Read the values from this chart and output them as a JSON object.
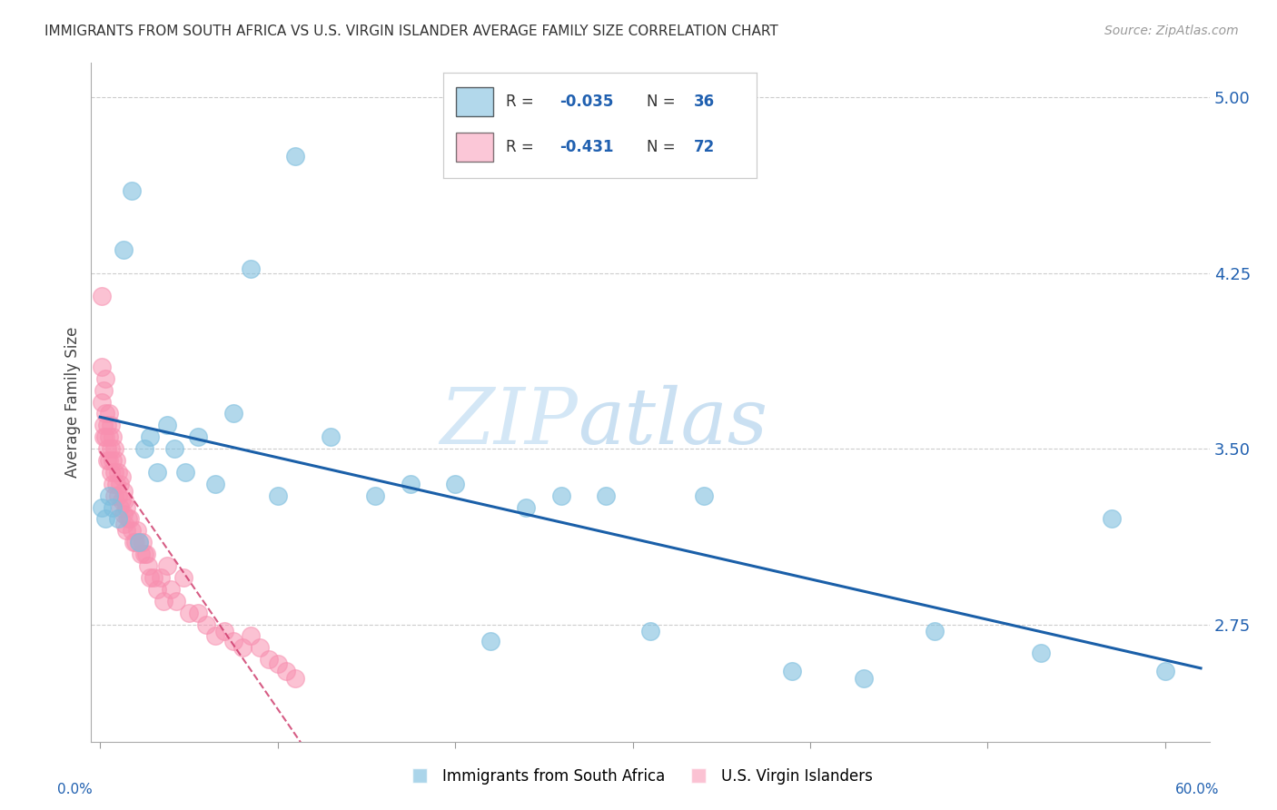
{
  "title": "IMMIGRANTS FROM SOUTH AFRICA VS U.S. VIRGIN ISLANDER AVERAGE FAMILY SIZE CORRELATION CHART",
  "source": "Source: ZipAtlas.com",
  "ylabel": "Average Family Size",
  "ylim": [
    2.25,
    5.15
  ],
  "xlim": [
    -0.005,
    0.625
  ],
  "yticks": [
    2.75,
    3.5,
    4.25,
    5.0
  ],
  "xticks": [
    0.0,
    0.1,
    0.2,
    0.3,
    0.4,
    0.5,
    0.6
  ],
  "background_color": "#ffffff",
  "blue_color": "#7fbfdf",
  "pink_color": "#f890b0",
  "trendline_blue_color": "#1a5fa8",
  "trendline_pink_color": "#cc3366",
  "watermark_zip": "ZIP",
  "watermark_atlas": "atlas",
  "blue_x": [
    0.001,
    0.003,
    0.005,
    0.007,
    0.01,
    0.013,
    0.018,
    0.022,
    0.025,
    0.028,
    0.032,
    0.038,
    0.042,
    0.048,
    0.055,
    0.065,
    0.075,
    0.085,
    0.1,
    0.11,
    0.13,
    0.155,
    0.175,
    0.2,
    0.22,
    0.24,
    0.26,
    0.285,
    0.31,
    0.34,
    0.39,
    0.43,
    0.47,
    0.53,
    0.57,
    0.6
  ],
  "blue_y": [
    3.25,
    3.2,
    3.3,
    3.25,
    3.2,
    4.35,
    4.6,
    3.1,
    3.5,
    3.55,
    3.4,
    3.6,
    3.5,
    3.4,
    3.55,
    3.35,
    3.65,
    4.27,
    3.3,
    4.75,
    3.55,
    3.3,
    3.35,
    3.35,
    2.68,
    3.25,
    3.3,
    3.3,
    2.72,
    3.3,
    2.55,
    2.52,
    2.72,
    2.63,
    3.2,
    2.55
  ],
  "pink_x": [
    0.001,
    0.001,
    0.001,
    0.002,
    0.002,
    0.002,
    0.003,
    0.003,
    0.003,
    0.004,
    0.004,
    0.004,
    0.005,
    0.005,
    0.005,
    0.006,
    0.006,
    0.006,
    0.007,
    0.007,
    0.007,
    0.008,
    0.008,
    0.008,
    0.009,
    0.009,
    0.01,
    0.01,
    0.011,
    0.011,
    0.012,
    0.012,
    0.013,
    0.013,
    0.014,
    0.014,
    0.015,
    0.015,
    0.016,
    0.017,
    0.018,
    0.019,
    0.02,
    0.021,
    0.022,
    0.023,
    0.024,
    0.025,
    0.026,
    0.027,
    0.028,
    0.03,
    0.032,
    0.034,
    0.036,
    0.038,
    0.04,
    0.043,
    0.047,
    0.05,
    0.055,
    0.06,
    0.065,
    0.07,
    0.075,
    0.08,
    0.085,
    0.09,
    0.095,
    0.1,
    0.105,
    0.11
  ],
  "pink_y": [
    4.15,
    3.85,
    3.7,
    3.75,
    3.6,
    3.55,
    3.8,
    3.65,
    3.55,
    3.6,
    3.5,
    3.45,
    3.65,
    3.55,
    3.45,
    3.6,
    3.5,
    3.4,
    3.55,
    3.45,
    3.35,
    3.5,
    3.4,
    3.3,
    3.45,
    3.35,
    3.4,
    3.3,
    3.35,
    3.25,
    3.38,
    3.28,
    3.32,
    3.22,
    3.28,
    3.18,
    3.25,
    3.15,
    3.2,
    3.2,
    3.15,
    3.1,
    3.1,
    3.15,
    3.1,
    3.05,
    3.1,
    3.05,
    3.05,
    3.0,
    2.95,
    2.95,
    2.9,
    2.95,
    2.85,
    3.0,
    2.9,
    2.85,
    2.95,
    2.8,
    2.8,
    2.75,
    2.7,
    2.72,
    2.68,
    2.65,
    2.7,
    2.65,
    2.6,
    2.58,
    2.55,
    2.52
  ]
}
